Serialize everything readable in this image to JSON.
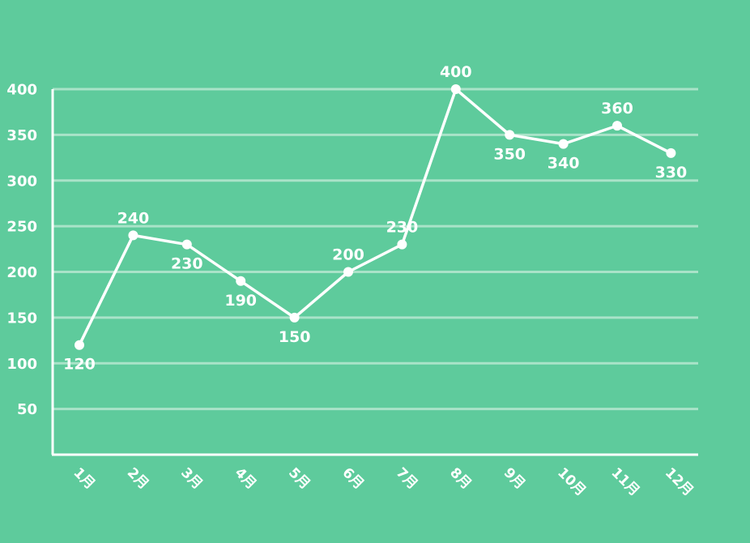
{
  "colors": {
    "background": "#5ecb9c",
    "line": "#ffffff",
    "grid": "#a9e3c8",
    "text": "#ffffff"
  },
  "chart_data": {
    "type": "line",
    "title": "",
    "xlabel": "",
    "ylabel": "",
    "categories": [
      "1月",
      "2月",
      "3月",
      "4月",
      "5月",
      "6月",
      "7月",
      "8月",
      "9月",
      "10月",
      "11月",
      "12月"
    ],
    "series": [
      {
        "values": [
          120,
          240,
          230,
          190,
          150,
          200,
          230,
          400,
          350,
          340,
          360,
          330
        ]
      }
    ],
    "data_label_position": [
      "below",
      "above",
      "below",
      "below",
      "below",
      "above",
      "above",
      "above",
      "below",
      "below",
      "above",
      "below"
    ],
    "yticks": [
      50,
      100,
      150,
      200,
      250,
      300,
      350,
      400
    ],
    "ylim": [
      0,
      400
    ],
    "grid": true,
    "legend": "none"
  }
}
